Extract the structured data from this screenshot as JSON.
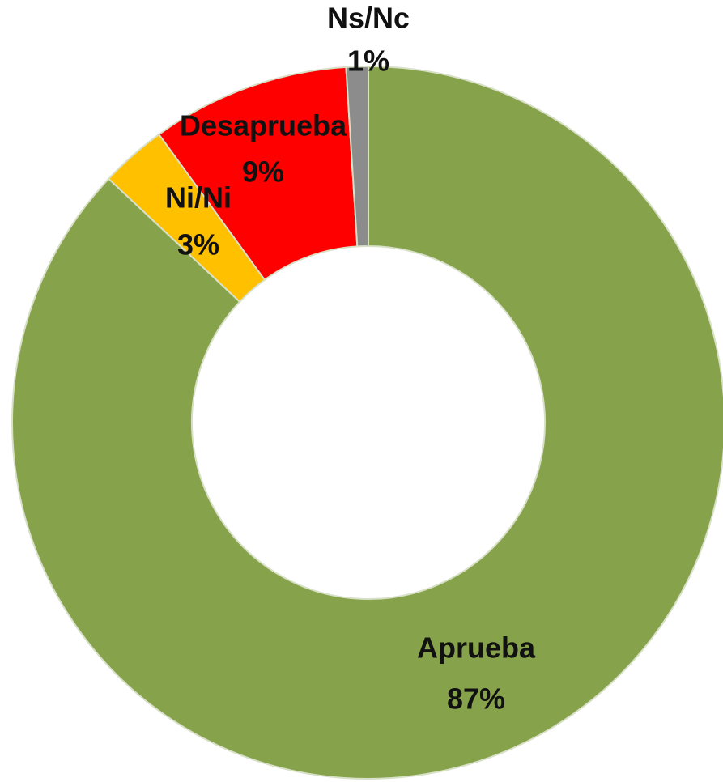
{
  "chart_data": {
    "type": "donut",
    "categories": [
      "Aprueba",
      "Ni/Ni",
      "Desaprueba",
      "Ns/Nc"
    ],
    "values": [
      87,
      3,
      9,
      1
    ],
    "value_labels": [
      "87%",
      "3%",
      "9%",
      "1%"
    ],
    "colors": [
      "#86a34b",
      "#ffc000",
      "#ff0000",
      "#8c8c8c"
    ]
  }
}
